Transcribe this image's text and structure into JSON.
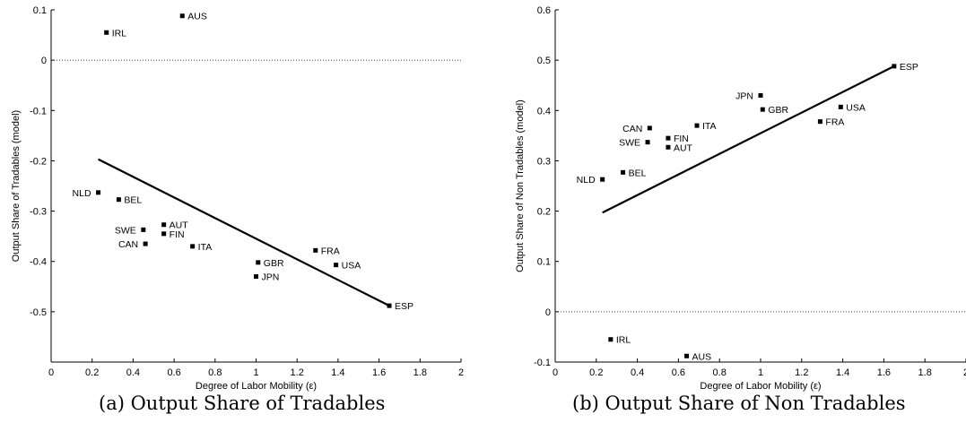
{
  "chart_data": [
    {
      "type": "scatter",
      "caption": "(a)  Output Share of Tradables",
      "xlabel": "Degree of Labor Mobility (ε)",
      "ylabel": "Output Share of Tradables (model)",
      "xlim": [
        0,
        2
      ],
      "ylim": [
        -0.6,
        0.1
      ],
      "xticks": [
        0,
        0.2,
        0.4,
        0.6,
        0.8,
        1,
        1.2,
        1.4,
        1.6,
        1.8,
        2
      ],
      "xtick_labels": [
        "0",
        "0.2",
        "0.4",
        "0.6",
        "0.8",
        "1",
        "1.2",
        "1.4",
        "1.6",
        "1.8",
        "2"
      ],
      "yticks": [
        -0.5,
        -0.4,
        -0.3,
        -0.2,
        -0.1,
        0,
        0.1
      ],
      "ytick_labels": [
        "-0.5",
        "-0.4",
        "-0.3",
        "-0.2",
        "-0.1",
        "0",
        "0.1"
      ],
      "zero_line": true,
      "points": [
        {
          "label": "AUS",
          "x": 0.64,
          "y": 0.088,
          "label_side": "right"
        },
        {
          "label": "IRL",
          "x": 0.27,
          "y": 0.055,
          "label_side": "right"
        },
        {
          "label": "NLD",
          "x": 0.23,
          "y": -0.263,
          "label_side": "left"
        },
        {
          "label": "BEL",
          "x": 0.33,
          "y": -0.277,
          "label_side": "right"
        },
        {
          "label": "AUT",
          "x": 0.55,
          "y": -0.327,
          "label_side": "right"
        },
        {
          "label": "SWE",
          "x": 0.45,
          "y": -0.337,
          "label_side": "left"
        },
        {
          "label": "FIN",
          "x": 0.55,
          "y": -0.345,
          "label_side": "right"
        },
        {
          "label": "CAN",
          "x": 0.46,
          "y": -0.365,
          "label_side": "left"
        },
        {
          "label": "ITA",
          "x": 0.69,
          "y": -0.37,
          "label_side": "right"
        },
        {
          "label": "FRA",
          "x": 1.29,
          "y": -0.378,
          "label_side": "right"
        },
        {
          "label": "GBR",
          "x": 1.01,
          "y": -0.402,
          "label_side": "right"
        },
        {
          "label": "USA",
          "x": 1.39,
          "y": -0.407,
          "label_side": "right"
        },
        {
          "label": "JPN",
          "x": 1.0,
          "y": -0.43,
          "label_side": "right"
        },
        {
          "label": "ESP",
          "x": 1.65,
          "y": -0.488,
          "label_side": "right"
        }
      ],
      "fit_line": {
        "x": [
          0.23,
          1.65
        ],
        "y": [
          -0.197,
          -0.488
        ]
      }
    },
    {
      "type": "scatter",
      "caption": "(b)  Output Share of Non Tradables",
      "xlabel": "Degree of Labor Mobility (ε)",
      "ylabel": "Output Share of Non Tradables (model)",
      "xlim": [
        0,
        2
      ],
      "ylim": [
        -0.1,
        0.6
      ],
      "xticks": [
        0,
        0.2,
        0.4,
        0.6,
        0.8,
        1,
        1.2,
        1.4,
        1.6,
        1.8,
        2
      ],
      "xtick_labels": [
        "0",
        "0.2",
        "0.4",
        "0.6",
        "0.8",
        "1",
        "1.2",
        "1.4",
        "1.6",
        "1.8",
        "2"
      ],
      "yticks": [
        -0.1,
        0,
        0.1,
        0.2,
        0.3,
        0.4,
        0.5,
        0.6
      ],
      "ytick_labels": [
        "-0.1",
        "0",
        "0.1",
        "0.2",
        "0.3",
        "0.4",
        "0.5",
        "0.6"
      ],
      "zero_line": true,
      "points": [
        {
          "label": "ESP",
          "x": 1.65,
          "y": 0.488,
          "label_side": "right"
        },
        {
          "label": "JPN",
          "x": 1.0,
          "y": 0.43,
          "label_side": "left"
        },
        {
          "label": "USA",
          "x": 1.39,
          "y": 0.407,
          "label_side": "right"
        },
        {
          "label": "GBR",
          "x": 1.01,
          "y": 0.402,
          "label_side": "right"
        },
        {
          "label": "FRA",
          "x": 1.29,
          "y": 0.378,
          "label_side": "right"
        },
        {
          "label": "ITA",
          "x": 0.69,
          "y": 0.37,
          "label_side": "right"
        },
        {
          "label": "CAN",
          "x": 0.46,
          "y": 0.365,
          "label_side": "left"
        },
        {
          "label": "FIN",
          "x": 0.55,
          "y": 0.345,
          "label_side": "right"
        },
        {
          "label": "SWE",
          "x": 0.45,
          "y": 0.337,
          "label_side": "left"
        },
        {
          "label": "AUT",
          "x": 0.55,
          "y": 0.327,
          "label_side": "right"
        },
        {
          "label": "BEL",
          "x": 0.33,
          "y": 0.277,
          "label_side": "right"
        },
        {
          "label": "NLD",
          "x": 0.23,
          "y": 0.263,
          "label_side": "left"
        },
        {
          "label": "IRL",
          "x": 0.27,
          "y": -0.055,
          "label_side": "right"
        },
        {
          "label": "AUS",
          "x": 0.64,
          "y": -0.088,
          "label_side": "right"
        }
      ],
      "fit_line": {
        "x": [
          0.23,
          1.65
        ],
        "y": [
          0.197,
          0.488
        ]
      }
    }
  ]
}
